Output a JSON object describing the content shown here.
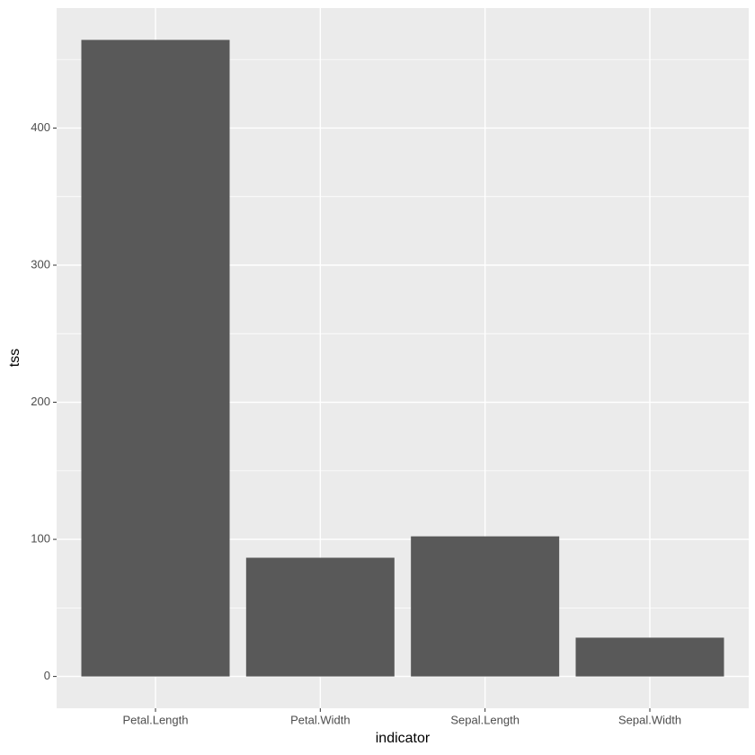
{
  "chart_data": {
    "type": "bar",
    "x_label": "indicator",
    "y_label": "tss",
    "categories": [
      "Petal.Length",
      "Petal.Width",
      "Sepal.Length",
      "Sepal.Width"
    ],
    "values": [
      464.3,
      86.6,
      102.2,
      28.3
    ],
    "color": "#595959",
    "ylim": [
      -23.2,
      487.5
    ],
    "yticks": [
      0,
      100,
      200,
      300,
      400
    ],
    "minor_yticks": [
      50,
      150,
      250,
      350,
      450
    ],
    "grid": true
  }
}
